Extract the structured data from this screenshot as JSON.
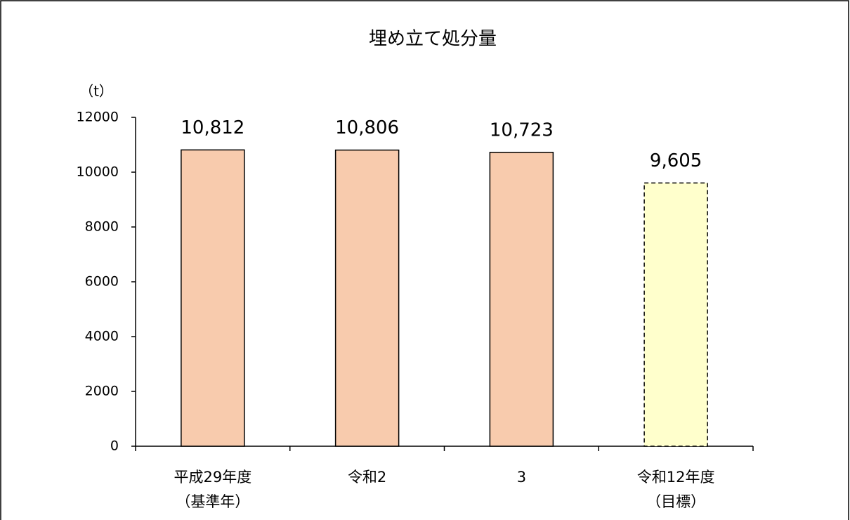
{
  "chart_data": {
    "type": "bar",
    "title": "埋め立て処分量",
    "y_label": "（t）",
    "categories": [
      [
        "平成29年度",
        "（基準年）"
      ],
      [
        "令和2"
      ],
      [
        "3"
      ],
      [
        "令和12年度",
        "（目標）"
      ]
    ],
    "values": [
      10812,
      10806,
      10723,
      9605
    ],
    "value_labels": [
      "10,812",
      "10,806",
      "10,723",
      "9,605"
    ],
    "colors": [
      "#f8cbad",
      "#f8cbad",
      "#f8cbad",
      "#ffffcc"
    ],
    "dashed": [
      false,
      false,
      false,
      true
    ],
    "title_color": "#ed7d31",
    "ylim": [
      0,
      12000
    ],
    "yticks": [
      0,
      2000,
      4000,
      6000,
      8000,
      10000,
      12000
    ],
    "grid": false
  }
}
